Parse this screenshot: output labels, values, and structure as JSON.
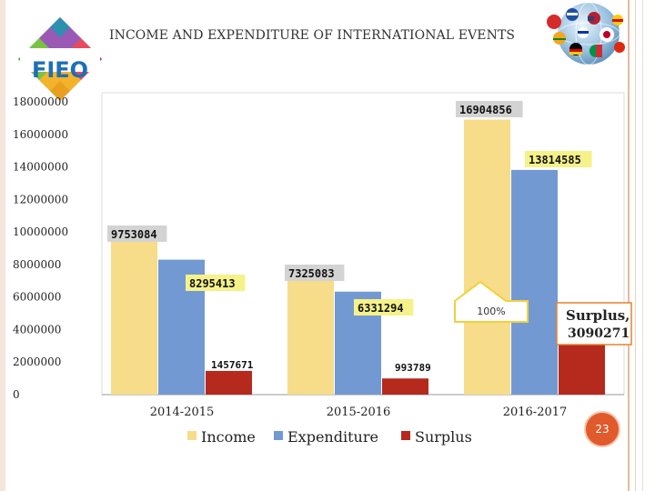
{
  "slide": {
    "title": "INCOME AND EXPENDITURE OF INTERNATIONAL EVENTS",
    "logo_text": "FIEO",
    "page_number": "23"
  },
  "colors": {
    "income": "#f7dc8a",
    "expenditure": "#7399d2",
    "surplus": "#b52a1d",
    "accent": "#e05a2b",
    "label_yellow": "#f5f28a",
    "label_gray": "#d3d3d3"
  },
  "chart_data": {
    "type": "bar",
    "title": "INCOME AND EXPENDITURE OF INTERNATIONAL EVENTS",
    "categories": [
      "2014-2015",
      "2015-2016",
      "2016-2017"
    ],
    "series": [
      {
        "name": "Income",
        "values": [
          9753084,
          7325083,
          16904856
        ],
        "labels": [
          "9753084",
          "7325083",
          "16904856"
        ]
      },
      {
        "name": "Expenditure",
        "values": [
          8295413,
          6331294,
          13814585
        ],
        "labels": [
          "8295413",
          "6331294",
          "13814585"
        ]
      },
      {
        "name": "Surplus",
        "values": [
          1457671,
          993789,
          3090271
        ],
        "labels": [
          "1457671",
          "993789",
          "3090271"
        ]
      }
    ],
    "ylim": [
      0,
      18000000
    ],
    "yticks": [
      "0",
      "2000000",
      "4000000",
      "6000000",
      "8000000",
      "10000000",
      "12000000",
      "14000000",
      "16000000",
      "18000000"
    ],
    "ytick_values": [
      0,
      2000000,
      4000000,
      6000000,
      8000000,
      10000000,
      12000000,
      14000000,
      16000000,
      18000000
    ],
    "legend": [
      "Income",
      "Expenditure",
      "Surplus"
    ],
    "legend_position": "bottom",
    "annotations": {
      "callout": "100%",
      "surplus_note_line1": "Surplus,",
      "surplus_note_line2": "3090271"
    },
    "xlabel": "",
    "ylabel": ""
  }
}
